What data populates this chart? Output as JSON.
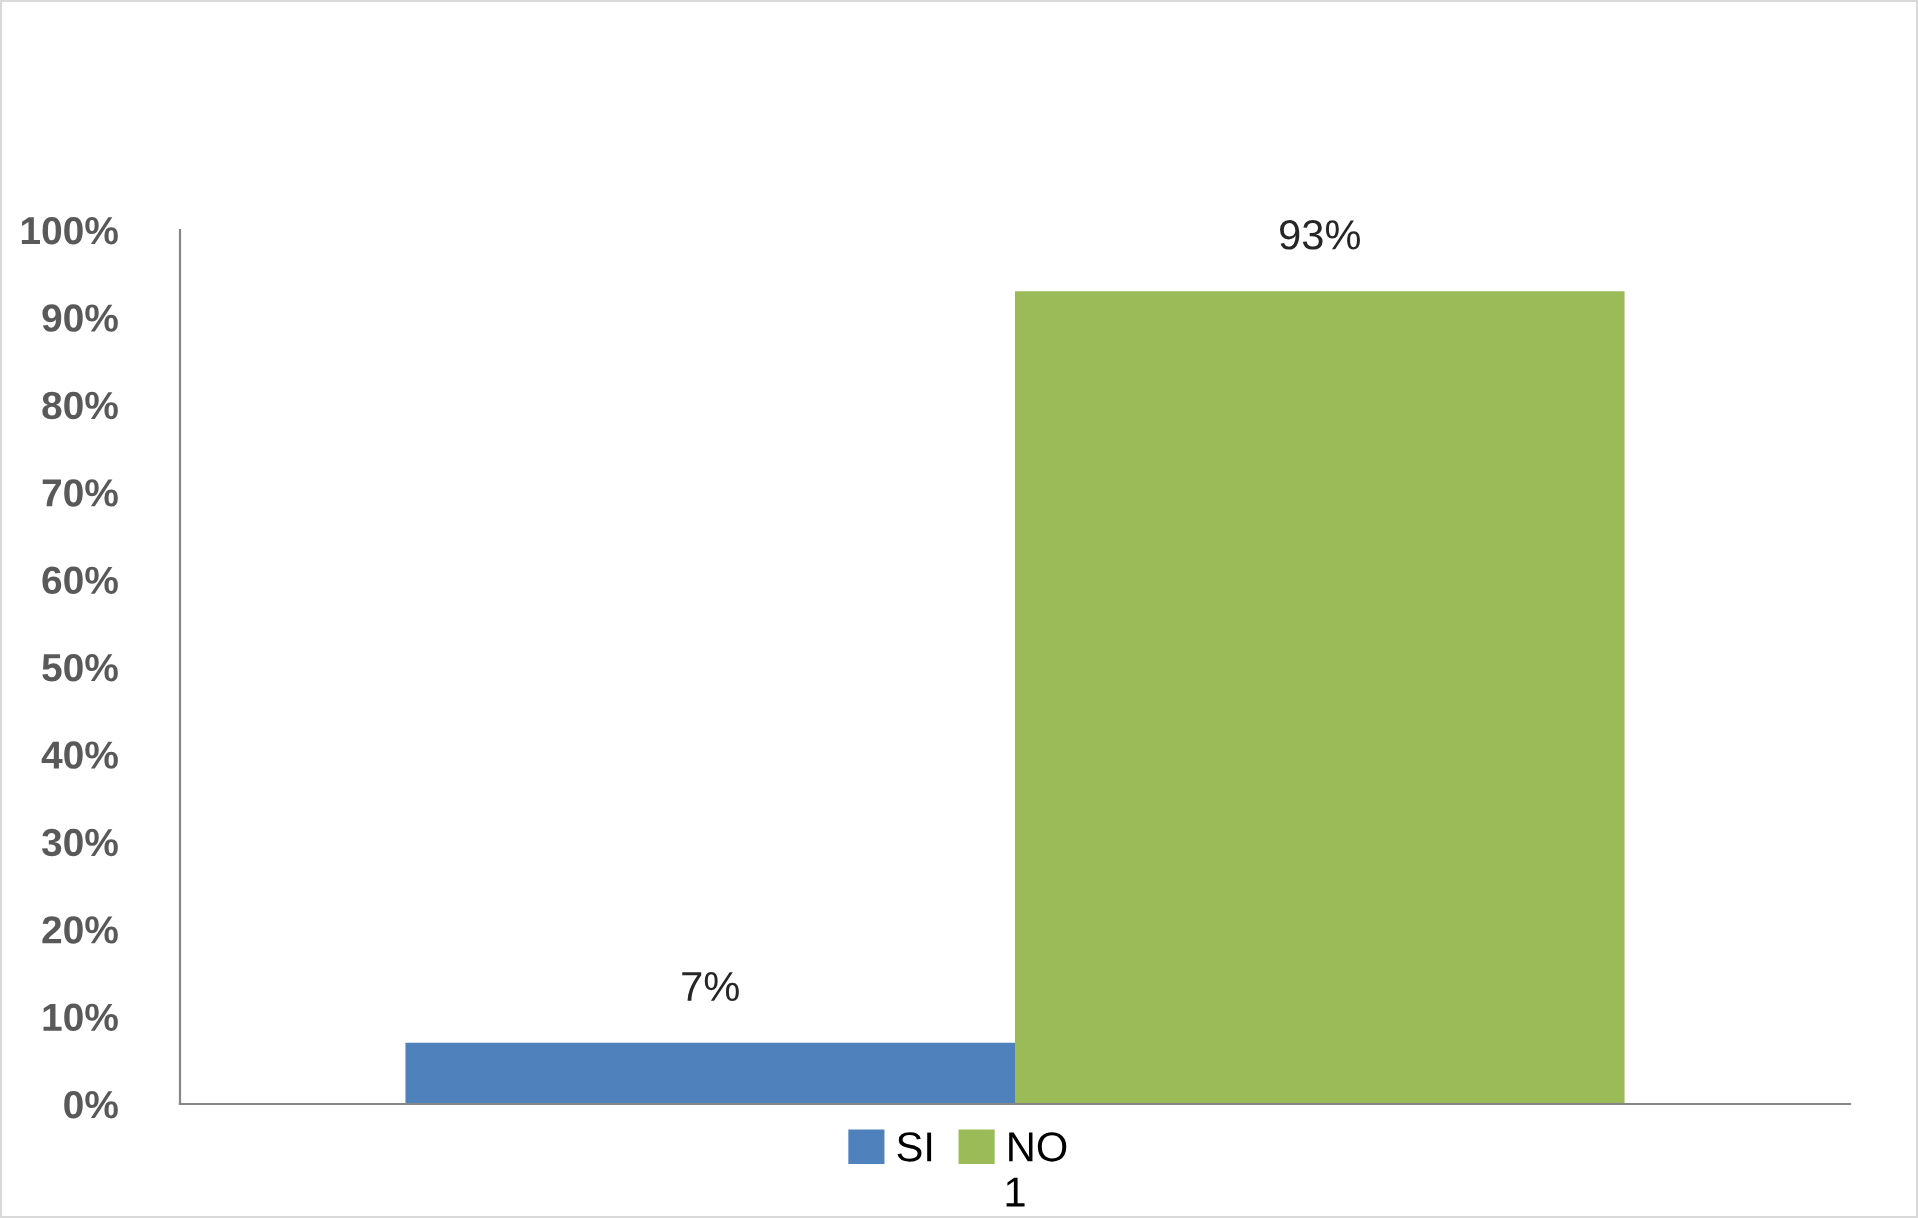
{
  "chart_data": {
    "type": "bar",
    "categories": [
      "1"
    ],
    "series": [
      {
        "name": "SI",
        "color": "#4f81bd",
        "values": [
          7
        ],
        "value_labels": [
          "7%"
        ]
      },
      {
        "name": "NO",
        "color": "#9bbb59",
        "values": [
          93
        ],
        "value_labels": [
          "93%"
        ]
      }
    ],
    "ylim": [
      0,
      100
    ],
    "yticks": [
      {
        "value": 0,
        "label": "0%"
      },
      {
        "value": 10,
        "label": "10%"
      },
      {
        "value": 20,
        "label": "20%"
      },
      {
        "value": 30,
        "label": "30%"
      },
      {
        "value": 40,
        "label": "40%"
      },
      {
        "value": 50,
        "label": "50%"
      },
      {
        "value": 60,
        "label": "60%"
      },
      {
        "value": 70,
        "label": "70%"
      },
      {
        "value": 80,
        "label": "80%"
      },
      {
        "value": 90,
        "label": "90%"
      },
      {
        "value": 100,
        "label": "100%"
      }
    ],
    "grid": false,
    "legend": "bottom"
  }
}
